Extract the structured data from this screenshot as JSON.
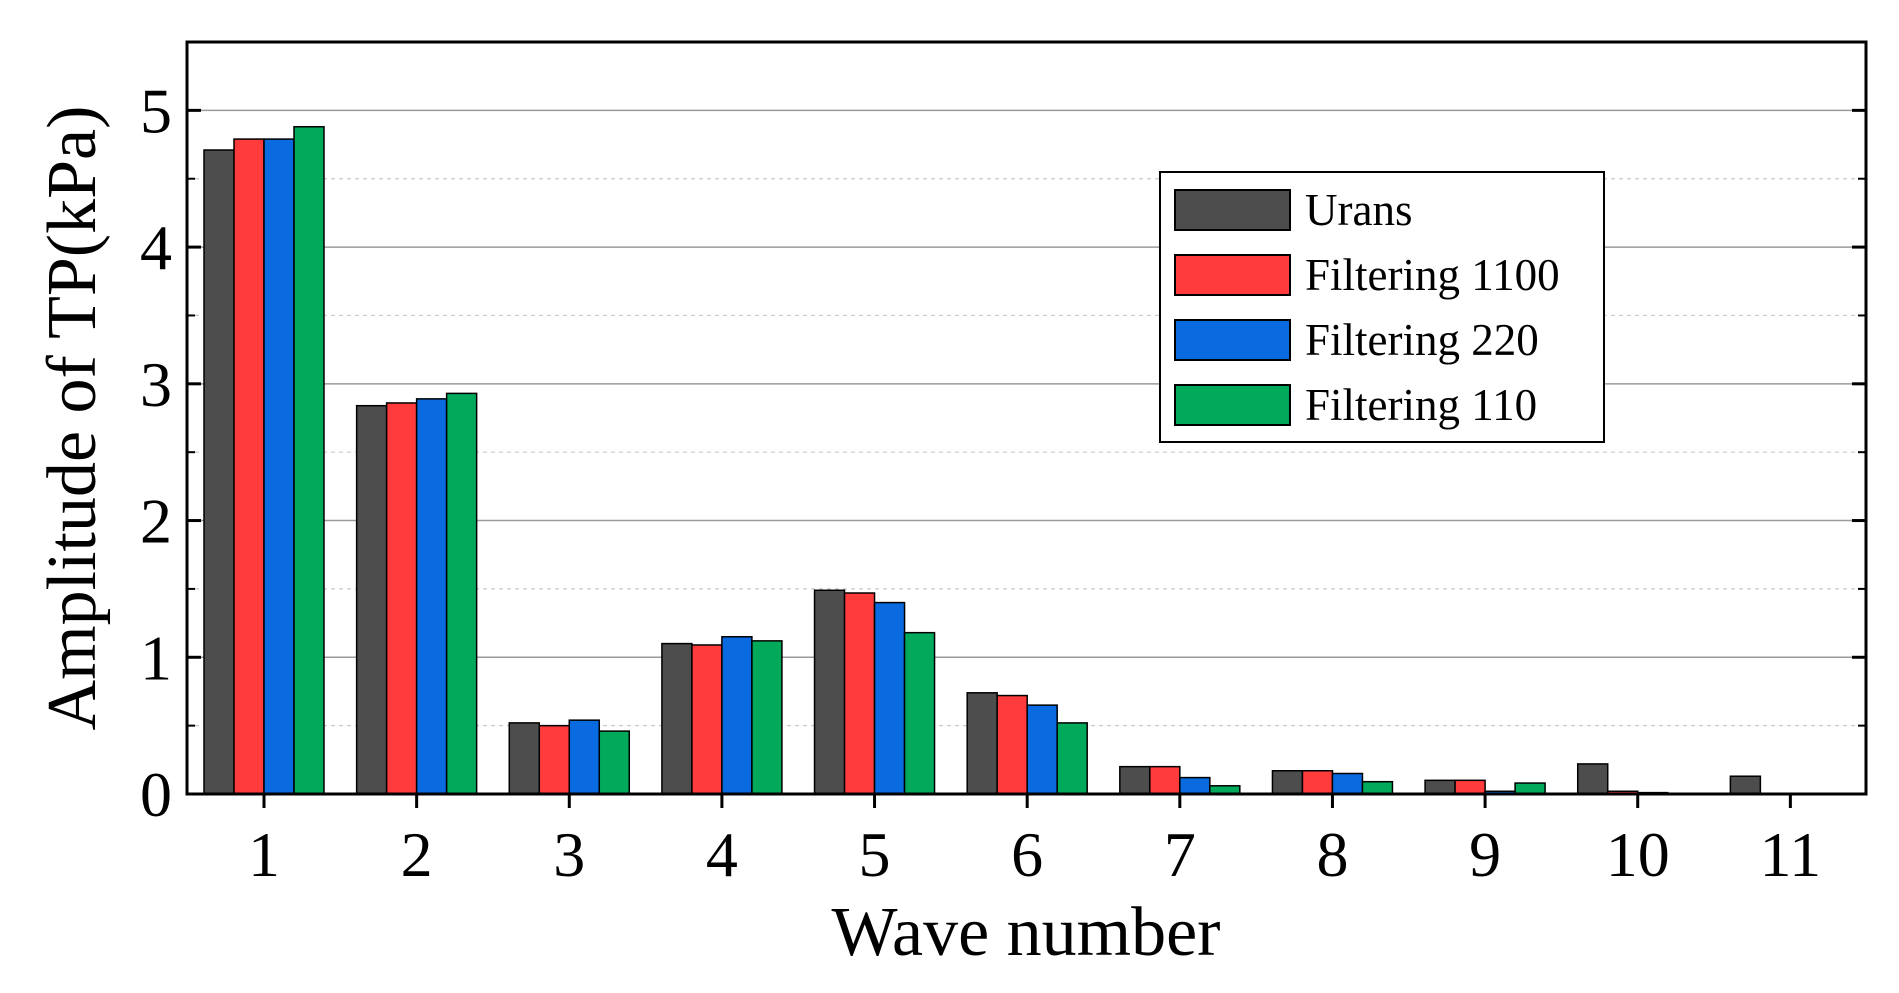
{
  "chart_data": {
    "type": "bar",
    "title": "",
    "xlabel": "Wave number",
    "ylabel": "Amplitude of TP(kPa)",
    "ylim": [
      0,
      5.5
    ],
    "yticks": [
      0,
      1,
      2,
      3,
      4,
      5
    ],
    "ytick_labels": [
      "0",
      "1",
      "2",
      "3",
      "4",
      "5"
    ],
    "categories": [
      "1",
      "2",
      "3",
      "4",
      "5",
      "6",
      "7",
      "8",
      "9",
      "10",
      "11"
    ],
    "grid": "horizontal major solid, minor dashed",
    "legend_position": "upper-right",
    "series": [
      {
        "name": "Urans",
        "color": "#4d4d4d",
        "values": [
          4.71,
          2.84,
          0.52,
          1.1,
          1.49,
          0.74,
          0.2,
          0.17,
          0.1,
          0.22,
          0.13
        ]
      },
      {
        "name": "Filtering 1100",
        "color": "#ff3b3b",
        "values": [
          4.79,
          2.86,
          0.5,
          1.09,
          1.47,
          0.72,
          0.2,
          0.17,
          0.1,
          0.02,
          0.0
        ]
      },
      {
        "name": "Filtering 220",
        "color": "#0a6ae0",
        "values": [
          4.79,
          2.89,
          0.54,
          1.15,
          1.4,
          0.65,
          0.12,
          0.15,
          0.02,
          0.01,
          0.0
        ]
      },
      {
        "name": "Filtering 110",
        "color": "#00aa5a",
        "values": [
          4.88,
          2.93,
          0.46,
          1.12,
          1.18,
          0.52,
          0.06,
          0.09,
          0.08,
          0.0,
          0.0
        ]
      }
    ]
  }
}
